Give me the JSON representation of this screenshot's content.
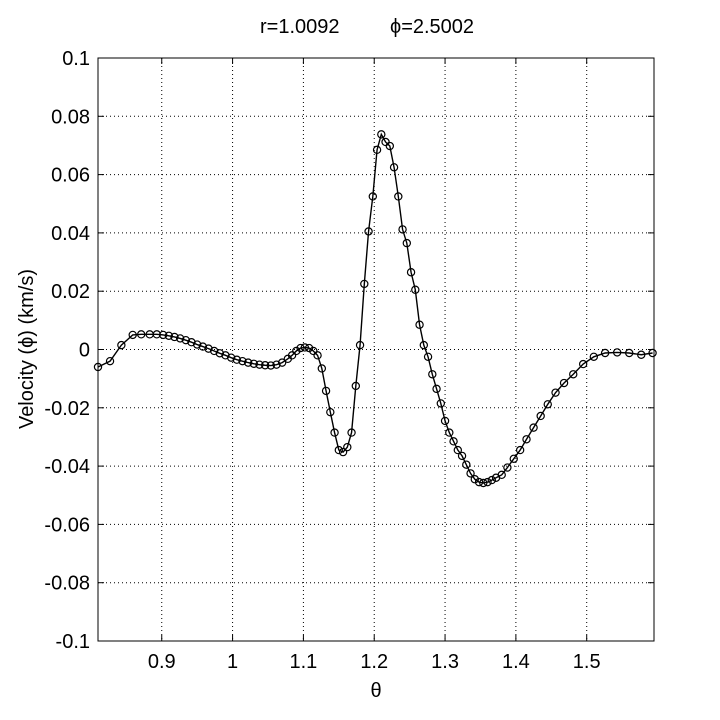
{
  "chart_data": {
    "type": "line",
    "title_parts": [
      "r=1.0092",
      "ϕ=2.5002"
    ],
    "xlabel": "θ",
    "ylabel": "Velocity (ϕ) (km/s)",
    "xlim": [
      0.81,
      1.595
    ],
    "ylim": [
      -0.1,
      0.1
    ],
    "xticks": [
      0.9,
      1.0,
      1.1,
      1.2,
      1.3,
      1.4,
      1.5
    ],
    "xtick_labels": [
      "0.9",
      "1",
      "1.1",
      "1.2",
      "1.3",
      "1.4",
      "1.5"
    ],
    "yticks": [
      0.1,
      0.08,
      0.06,
      0.04,
      0.02,
      0,
      -0.02,
      -0.04,
      -0.06,
      -0.08,
      -0.1
    ],
    "ytick_labels": [
      "0.1",
      "0.08",
      "0.06",
      "0.04",
      "0.02",
      "0",
      "-0.02",
      "-0.04",
      "-0.06",
      "-0.08",
      "-0.1"
    ],
    "grid": true,
    "marker": "circle-open",
    "line_color": "#000000",
    "x": [
      0.81,
      0.827,
      0.843,
      0.859,
      0.871,
      0.883,
      0.893,
      0.902,
      0.91,
      0.918,
      0.926,
      0.934,
      0.942,
      0.95,
      0.958,
      0.966,
      0.974,
      0.982,
      0.99,
      0.998,
      1.006,
      1.014,
      1.022,
      1.03,
      1.038,
      1.046,
      1.054,
      1.062,
      1.07,
      1.078,
      1.084,
      1.09,
      1.096,
      1.102,
      1.108,
      1.114,
      1.12,
      1.126,
      1.132,
      1.138,
      1.144,
      1.15,
      1.156,
      1.162,
      1.168,
      1.174,
      1.18,
      1.186,
      1.192,
      1.198,
      1.204,
      1.21,
      1.216,
      1.222,
      1.228,
      1.234,
      1.24,
      1.246,
      1.252,
      1.258,
      1.264,
      1.27,
      1.276,
      1.282,
      1.288,
      1.294,
      1.3,
      1.306,
      1.312,
      1.318,
      1.324,
      1.33,
      1.336,
      1.342,
      1.348,
      1.354,
      1.36,
      1.366,
      1.372,
      1.38,
      1.388,
      1.397,
      1.406,
      1.415,
      1.425,
      1.435,
      1.445,
      1.456,
      1.468,
      1.481,
      1.495,
      1.51,
      1.526,
      1.543,
      1.56,
      1.577,
      1.593
    ],
    "y": [
      -0.006,
      -0.004,
      0.0015,
      0.005,
      0.0052,
      0.0052,
      0.0052,
      0.005,
      0.0047,
      0.0043,
      0.0038,
      0.0032,
      0.0025,
      0.0017,
      0.001,
      0.0003,
      -0.0005,
      -0.0013,
      -0.002,
      -0.0028,
      -0.0035,
      -0.004,
      -0.0045,
      -0.0049,
      -0.0052,
      -0.0054,
      -0.0055,
      -0.0052,
      -0.0045,
      -0.0032,
      -0.002,
      -0.0005,
      0.0005,
      0.0007,
      0.0005,
      -0.0005,
      -0.002,
      -0.0065,
      -0.0142,
      -0.0215,
      -0.0285,
      -0.0345,
      -0.0352,
      -0.0335,
      -0.0285,
      -0.0125,
      0.0015,
      0.0225,
      0.0405,
      0.0525,
      0.0685,
      0.0738,
      0.0712,
      0.0698,
      0.0625,
      0.0525,
      0.0412,
      0.0365,
      0.0265,
      0.0205,
      0.0085,
      0.0015,
      -0.0025,
      -0.0085,
      -0.0135,
      -0.0185,
      -0.0245,
      -0.0285,
      -0.0315,
      -0.0345,
      -0.0365,
      -0.0395,
      -0.0425,
      -0.0445,
      -0.0455,
      -0.0458,
      -0.0455,
      -0.0448,
      -0.044,
      -0.043,
      -0.0405,
      -0.0375,
      -0.0345,
      -0.0308,
      -0.0268,
      -0.0228,
      -0.0188,
      -0.0148,
      -0.0115,
      -0.0085,
      -0.005,
      -0.0025,
      -0.0012,
      -0.001,
      -0.0012,
      -0.0018,
      -0.0012
    ]
  }
}
